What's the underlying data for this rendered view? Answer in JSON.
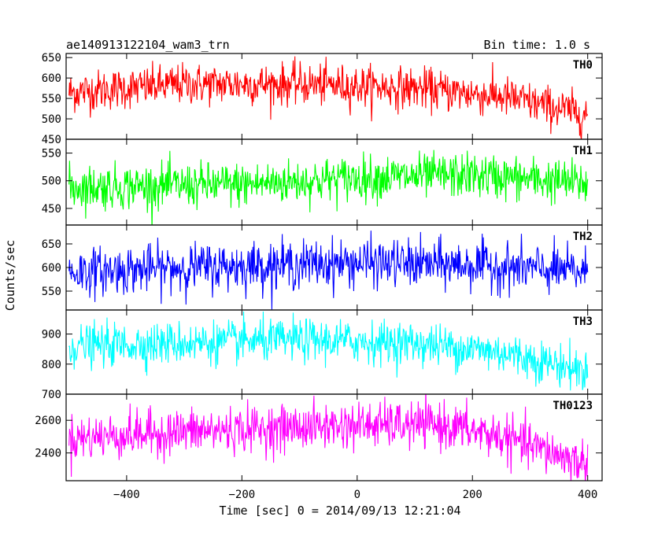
{
  "header": {
    "title": "ae140913122104_wam3_trn",
    "bin_time": "Bin time: 1.0 s"
  },
  "axes": {
    "xlabel": "Time [sec] 0 = 2014/09/13 12:21:04",
    "ylabel": "Counts/sec"
  },
  "chart_data": {
    "type": "line",
    "title": "ae140913122104_wam3_trn",
    "subtitle": "Bin time: 1.0 s",
    "xlabel": "Time [sec] 0 = 2014/09/13 12:21:04",
    "ylabel": "Counts/sec",
    "xlim": [
      -505,
      425
    ],
    "x_ticks": [
      -400,
      -200,
      0,
      200,
      400
    ],
    "x_tick_labels": [
      "−400",
      "−200",
      "0",
      "200",
      "400"
    ],
    "grid": false,
    "legend": "none",
    "panels": [
      {
        "name": "TH0",
        "color": "#ff0000",
        "ylim": [
          450,
          660
        ],
        "y_ticks": [
          450,
          500,
          550,
          600,
          650
        ],
        "x_range": [
          -500,
          400
        ],
        "mean_trend": [
          [
            -500,
            565
          ],
          [
            -300,
            585
          ],
          [
            -100,
            585
          ],
          [
            100,
            575
          ],
          [
            250,
            555
          ],
          [
            400,
            510
          ]
        ],
        "noise_sd": 25
      },
      {
        "name": "TH1",
        "color": "#00ff00",
        "ylim": [
          420,
          575
        ],
        "y_ticks": [
          450,
          500,
          550
        ],
        "x_range": [
          -500,
          400
        ],
        "mean_trend": [
          [
            -500,
            488
          ],
          [
            -200,
            493
          ],
          [
            0,
            505
          ],
          [
            200,
            510
          ],
          [
            400,
            495
          ]
        ],
        "noise_sd": 20
      },
      {
        "name": "TH2",
        "color": "#0000ff",
        "ylim": [
          510,
          690
        ],
        "y_ticks": [
          550,
          600,
          650
        ],
        "x_range": [
          -500,
          400
        ],
        "mean_trend": [
          [
            -500,
            590
          ],
          [
            -300,
            600
          ],
          [
            0,
            610
          ],
          [
            200,
            605
          ],
          [
            400,
            590
          ]
        ],
        "noise_sd": 25
      },
      {
        "name": "TH3",
        "color": "#00ffff",
        "ylim": [
          700,
          980
        ],
        "y_ticks": [
          700,
          800,
          900
        ],
        "x_range": [
          -500,
          400
        ],
        "mean_trend": [
          [
            -500,
            860
          ],
          [
            -300,
            870
          ],
          [
            -100,
            880
          ],
          [
            100,
            870
          ],
          [
            250,
            840
          ],
          [
            400,
            775
          ]
        ],
        "noise_sd": 35
      },
      {
        "name": "TH0123",
        "color": "#ff00ff",
        "ylim": [
          2230,
          2760
        ],
        "y_ticks": [
          2400,
          2600
        ],
        "x_range": [
          -500,
          400
        ],
        "mean_trend": [
          [
            -500,
            2490
          ],
          [
            -300,
            2530
          ],
          [
            0,
            2570
          ],
          [
            150,
            2570
          ],
          [
            250,
            2500
          ],
          [
            400,
            2330
          ]
        ],
        "noise_sd": 70
      }
    ]
  }
}
